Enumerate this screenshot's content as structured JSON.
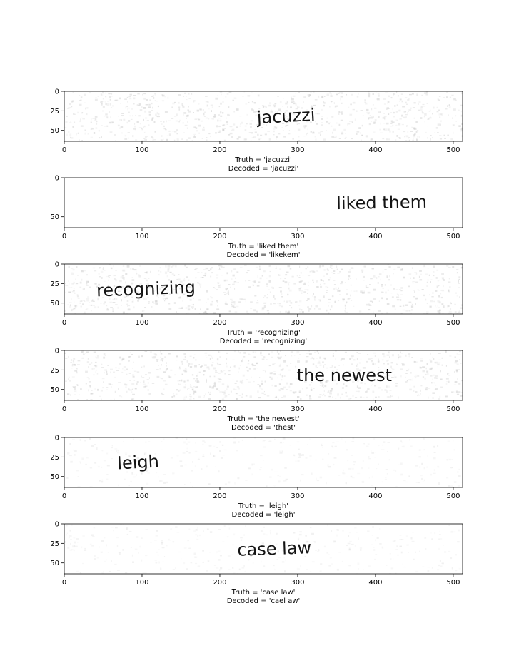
{
  "chart_data": [
    {
      "type": "image",
      "image_text": "jacuzzi",
      "image_word_x": 285,
      "image_width": 512,
      "image_height": 64,
      "x_ticks": [
        0,
        100,
        200,
        300,
        400,
        500
      ],
      "y_ticks": [
        0,
        25,
        50
      ],
      "caption": [
        "Truth = 'jacuzzi'",
        "Decoded = 'jacuzzi'"
      ],
      "noise": "heavy"
    },
    {
      "type": "image",
      "image_text": "liked them",
      "image_word_x": 408,
      "image_width": 512,
      "image_height": 64,
      "x_ticks": [
        0,
        100,
        200,
        300,
        400,
        500
      ],
      "y_ticks": [
        0,
        50
      ],
      "caption": [
        "Truth = 'liked them'",
        "Decoded = 'likekem'"
      ],
      "noise": "none"
    },
    {
      "type": "image",
      "image_text": "recognizing",
      "image_word_x": 105,
      "image_width": 512,
      "image_height": 64,
      "x_ticks": [
        0,
        100,
        200,
        300,
        400,
        500
      ],
      "y_ticks": [
        0,
        25,
        50
      ],
      "caption": [
        "Truth = 'recognizing'",
        "Decoded = 'recognizing'"
      ],
      "noise": "heavy"
    },
    {
      "type": "image",
      "image_text": "the newest",
      "image_word_x": 360,
      "image_width": 512,
      "image_height": 64,
      "x_ticks": [
        0,
        100,
        200,
        300,
        400,
        500
      ],
      "y_ticks": [
        0,
        25,
        50
      ],
      "caption": [
        "Truth = 'the newest'",
        "Decoded = 'thest'"
      ],
      "noise": "heavy"
    },
    {
      "type": "image",
      "image_text": "leigh",
      "image_word_x": 95,
      "image_width": 512,
      "image_height": 64,
      "x_ticks": [
        0,
        100,
        200,
        300,
        400,
        500
      ],
      "y_ticks": [
        0,
        25,
        50
      ],
      "caption": [
        "Truth = 'leigh'",
        "Decoded = 'leigh'"
      ],
      "noise": "light"
    },
    {
      "type": "image",
      "image_text": "case law",
      "image_word_x": 270,
      "image_width": 512,
      "image_height": 64,
      "x_ticks": [
        0,
        100,
        200,
        300,
        400,
        500
      ],
      "y_ticks": [
        0,
        25,
        50
      ],
      "caption": [
        "Truth = 'case law'",
        "Decoded = 'cael aw'"
      ],
      "noise": "light"
    }
  ],
  "colors": {
    "axis": "#000000",
    "ink": "#141414",
    "noise": "#c8c8c8",
    "background": "#ffffff"
  }
}
